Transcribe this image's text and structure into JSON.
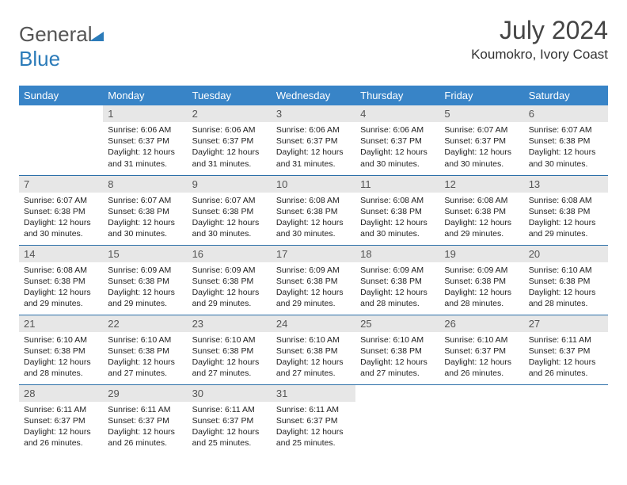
{
  "brand": {
    "part1": "General",
    "part2": "Blue"
  },
  "title": "July 2024",
  "location": "Koumokro, Ivory Coast",
  "colors": {
    "header_bg": "#3884c7",
    "header_text": "#ffffff",
    "daynum_bg": "#e7e7e7",
    "row_border": "#2b6fa8",
    "brand_grey": "#555555",
    "brand_blue": "#2b7bb9"
  },
  "weekdays": [
    "Sunday",
    "Monday",
    "Tuesday",
    "Wednesday",
    "Thursday",
    "Friday",
    "Saturday"
  ],
  "weeks": [
    [
      {
        "day": "",
        "lines": []
      },
      {
        "day": "1",
        "lines": [
          "Sunrise: 6:06 AM",
          "Sunset: 6:37 PM",
          "Daylight: 12 hours and 31 minutes."
        ]
      },
      {
        "day": "2",
        "lines": [
          "Sunrise: 6:06 AM",
          "Sunset: 6:37 PM",
          "Daylight: 12 hours and 31 minutes."
        ]
      },
      {
        "day": "3",
        "lines": [
          "Sunrise: 6:06 AM",
          "Sunset: 6:37 PM",
          "Daylight: 12 hours and 31 minutes."
        ]
      },
      {
        "day": "4",
        "lines": [
          "Sunrise: 6:06 AM",
          "Sunset: 6:37 PM",
          "Daylight: 12 hours and 30 minutes."
        ]
      },
      {
        "day": "5",
        "lines": [
          "Sunrise: 6:07 AM",
          "Sunset: 6:37 PM",
          "Daylight: 12 hours and 30 minutes."
        ]
      },
      {
        "day": "6",
        "lines": [
          "Sunrise: 6:07 AM",
          "Sunset: 6:38 PM",
          "Daylight: 12 hours and 30 minutes."
        ]
      }
    ],
    [
      {
        "day": "7",
        "lines": [
          "Sunrise: 6:07 AM",
          "Sunset: 6:38 PM",
          "Daylight: 12 hours and 30 minutes."
        ]
      },
      {
        "day": "8",
        "lines": [
          "Sunrise: 6:07 AM",
          "Sunset: 6:38 PM",
          "Daylight: 12 hours and 30 minutes."
        ]
      },
      {
        "day": "9",
        "lines": [
          "Sunrise: 6:07 AM",
          "Sunset: 6:38 PM",
          "Daylight: 12 hours and 30 minutes."
        ]
      },
      {
        "day": "10",
        "lines": [
          "Sunrise: 6:08 AM",
          "Sunset: 6:38 PM",
          "Daylight: 12 hours and 30 minutes."
        ]
      },
      {
        "day": "11",
        "lines": [
          "Sunrise: 6:08 AM",
          "Sunset: 6:38 PM",
          "Daylight: 12 hours and 30 minutes."
        ]
      },
      {
        "day": "12",
        "lines": [
          "Sunrise: 6:08 AM",
          "Sunset: 6:38 PM",
          "Daylight: 12 hours and 29 minutes."
        ]
      },
      {
        "day": "13",
        "lines": [
          "Sunrise: 6:08 AM",
          "Sunset: 6:38 PM",
          "Daylight: 12 hours and 29 minutes."
        ]
      }
    ],
    [
      {
        "day": "14",
        "lines": [
          "Sunrise: 6:08 AM",
          "Sunset: 6:38 PM",
          "Daylight: 12 hours and 29 minutes."
        ]
      },
      {
        "day": "15",
        "lines": [
          "Sunrise: 6:09 AM",
          "Sunset: 6:38 PM",
          "Daylight: 12 hours and 29 minutes."
        ]
      },
      {
        "day": "16",
        "lines": [
          "Sunrise: 6:09 AM",
          "Sunset: 6:38 PM",
          "Daylight: 12 hours and 29 minutes."
        ]
      },
      {
        "day": "17",
        "lines": [
          "Sunrise: 6:09 AM",
          "Sunset: 6:38 PM",
          "Daylight: 12 hours and 29 minutes."
        ]
      },
      {
        "day": "18",
        "lines": [
          "Sunrise: 6:09 AM",
          "Sunset: 6:38 PM",
          "Daylight: 12 hours and 28 minutes."
        ]
      },
      {
        "day": "19",
        "lines": [
          "Sunrise: 6:09 AM",
          "Sunset: 6:38 PM",
          "Daylight: 12 hours and 28 minutes."
        ]
      },
      {
        "day": "20",
        "lines": [
          "Sunrise: 6:10 AM",
          "Sunset: 6:38 PM",
          "Daylight: 12 hours and 28 minutes."
        ]
      }
    ],
    [
      {
        "day": "21",
        "lines": [
          "Sunrise: 6:10 AM",
          "Sunset: 6:38 PM",
          "Daylight: 12 hours and 28 minutes."
        ]
      },
      {
        "day": "22",
        "lines": [
          "Sunrise: 6:10 AM",
          "Sunset: 6:38 PM",
          "Daylight: 12 hours and 27 minutes."
        ]
      },
      {
        "day": "23",
        "lines": [
          "Sunrise: 6:10 AM",
          "Sunset: 6:38 PM",
          "Daylight: 12 hours and 27 minutes."
        ]
      },
      {
        "day": "24",
        "lines": [
          "Sunrise: 6:10 AM",
          "Sunset: 6:38 PM",
          "Daylight: 12 hours and 27 minutes."
        ]
      },
      {
        "day": "25",
        "lines": [
          "Sunrise: 6:10 AM",
          "Sunset: 6:38 PM",
          "Daylight: 12 hours and 27 minutes."
        ]
      },
      {
        "day": "26",
        "lines": [
          "Sunrise: 6:10 AM",
          "Sunset: 6:37 PM",
          "Daylight: 12 hours and 26 minutes."
        ]
      },
      {
        "day": "27",
        "lines": [
          "Sunrise: 6:11 AM",
          "Sunset: 6:37 PM",
          "Daylight: 12 hours and 26 minutes."
        ]
      }
    ],
    [
      {
        "day": "28",
        "lines": [
          "Sunrise: 6:11 AM",
          "Sunset: 6:37 PM",
          "Daylight: 12 hours and 26 minutes."
        ]
      },
      {
        "day": "29",
        "lines": [
          "Sunrise: 6:11 AM",
          "Sunset: 6:37 PM",
          "Daylight: 12 hours and 26 minutes."
        ]
      },
      {
        "day": "30",
        "lines": [
          "Sunrise: 6:11 AM",
          "Sunset: 6:37 PM",
          "Daylight: 12 hours and 25 minutes."
        ]
      },
      {
        "day": "31",
        "lines": [
          "Sunrise: 6:11 AM",
          "Sunset: 6:37 PM",
          "Daylight: 12 hours and 25 minutes."
        ]
      },
      {
        "day": "",
        "lines": []
      },
      {
        "day": "",
        "lines": []
      },
      {
        "day": "",
        "lines": []
      }
    ]
  ]
}
